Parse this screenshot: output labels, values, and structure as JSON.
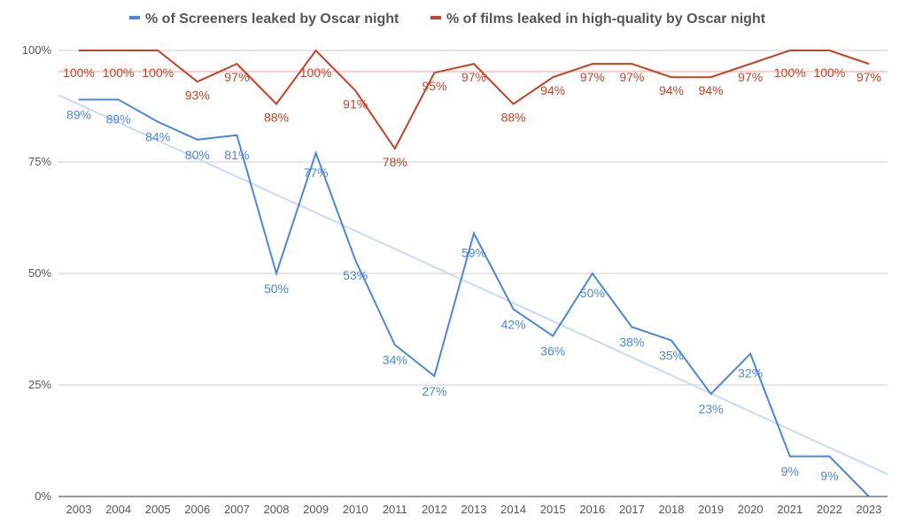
{
  "chart_data": {
    "type": "line",
    "x": [
      "2003",
      "2004",
      "2005",
      "2006",
      "2007",
      "2008",
      "2009",
      "2010",
      "2011",
      "2012",
      "2013",
      "2014",
      "2015",
      "2016",
      "2017",
      "2018",
      "2019",
      "2020",
      "2021",
      "2022",
      "2023"
    ],
    "series": [
      {
        "name": "% of Screeners leaked by Oscar night",
        "color": "#4a86e8",
        "values": [
          89,
          89,
          84,
          80,
          81,
          50,
          77,
          53,
          34,
          27,
          59,
          42,
          36,
          50,
          38,
          35,
          23,
          32,
          9,
          9,
          0
        ],
        "labels": [
          "89%",
          "89%",
          "84%",
          "80%",
          "81%",
          "50%",
          "77%",
          "53%",
          "34%",
          "27%",
          "59%",
          "42%",
          "36%",
          "50%",
          "38%",
          "35%",
          "23%",
          "32%",
          "9%",
          "9%",
          ""
        ]
      },
      {
        "name": "% of films leaked in high-quality by Oscar night",
        "color": "#cc4125",
        "values": [
          100,
          100,
          100,
          93,
          97,
          88,
          100,
          91,
          78,
          95,
          97,
          88,
          94,
          97,
          97,
          94,
          94,
          97,
          100,
          100,
          97
        ],
        "labels": [
          "100%",
          "100%",
          "100%",
          "93%",
          "97%",
          "88%",
          "100%",
          "91%",
          "78%",
          "95%",
          "97%",
          "88%",
          "94%",
          "97%",
          "97%",
          "94%",
          "94%",
          "97%",
          "100%",
          "100%",
          "97%"
        ]
      }
    ],
    "trendlines": [
      {
        "series": "% of Screeners leaked by Oscar night",
        "color": "#c9daf8",
        "start": 90,
        "end": 5
      },
      {
        "series": "% of films leaked in high-quality by Oscar night",
        "color": "#f4cccc",
        "start": 95.3,
        "end": 95.3
      }
    ],
    "yticks": [
      "0%",
      "25%",
      "50%",
      "75%",
      "100%"
    ],
    "ytick_values": [
      0,
      25,
      50,
      75,
      100
    ],
    "ylim": [
      0,
      100
    ],
    "grid": true,
    "legend": "top",
    "title": "",
    "xlabel": "",
    "ylabel": ""
  }
}
